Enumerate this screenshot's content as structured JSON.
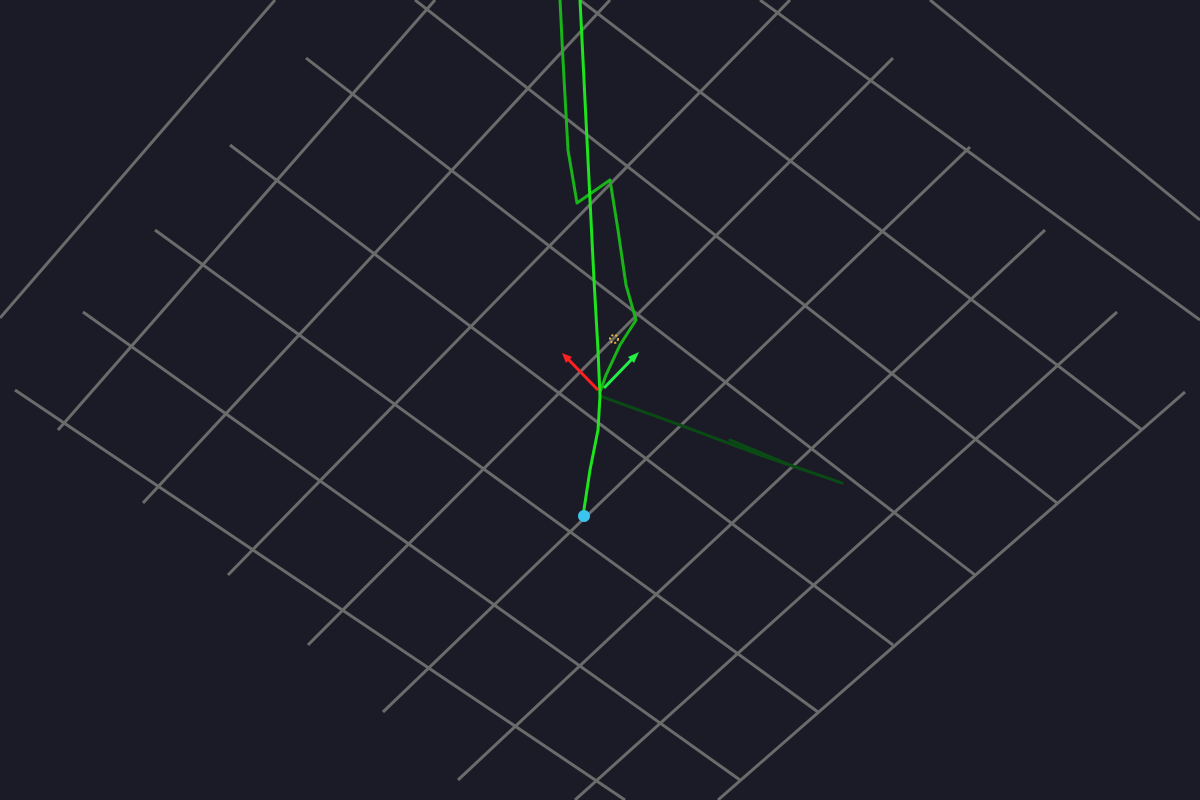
{
  "viewer": {
    "background_color": "#1b1b27",
    "grid_color": "#6b6b6b"
  },
  "colors": {
    "path_bright": "#1ee41e",
    "path_mid": "#18b418",
    "path_dark": "#0f7a0f",
    "path_darkest": "#0a4a14",
    "axis_x": "#ff2020",
    "axis_y": "#22ee44",
    "start_marker": "#3cc4f0",
    "pivot_marker": "#e6b43c"
  },
  "icons": {
    "start_marker": "circle-marker-icon",
    "pivot_marker": "crosshair-icon",
    "axis_gizmo": "axes-gizmo-icon"
  }
}
